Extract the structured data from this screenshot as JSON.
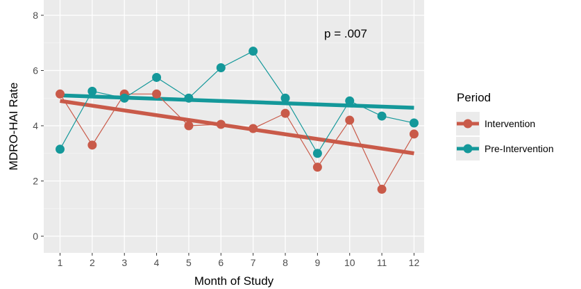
{
  "chart_data": {
    "type": "line",
    "xlabel": "Month of Study",
    "ylabel": "MDRO-HAI Rate",
    "x": [
      1,
      2,
      3,
      4,
      5,
      6,
      7,
      8,
      9,
      10,
      11,
      12
    ],
    "xlim": [
      0.7,
      12.3
    ],
    "ylim": [
      -0.3,
      8.3
    ],
    "yticks": [
      0,
      2,
      4,
      6,
      8
    ],
    "grid": true,
    "annotation": "p = .007",
    "legend": {
      "title": "Period",
      "position": "right"
    },
    "series": [
      {
        "name": "Intervention",
        "color": "#c95a49",
        "values": [
          5.15,
          3.3,
          5.15,
          5.15,
          4.0,
          4.05,
          3.9,
          4.45,
          2.5,
          4.2,
          1.7,
          3.7
        ],
        "trend": [
          4.9,
          3.0
        ]
      },
      {
        "name": "Pre-Intervention",
        "color": "#14989a",
        "values": [
          3.15,
          5.25,
          5.0,
          5.75,
          5.0,
          6.1,
          6.7,
          5.0,
          3.0,
          4.9,
          4.35,
          4.1
        ],
        "trend": [
          5.1,
          4.65
        ]
      }
    ]
  }
}
